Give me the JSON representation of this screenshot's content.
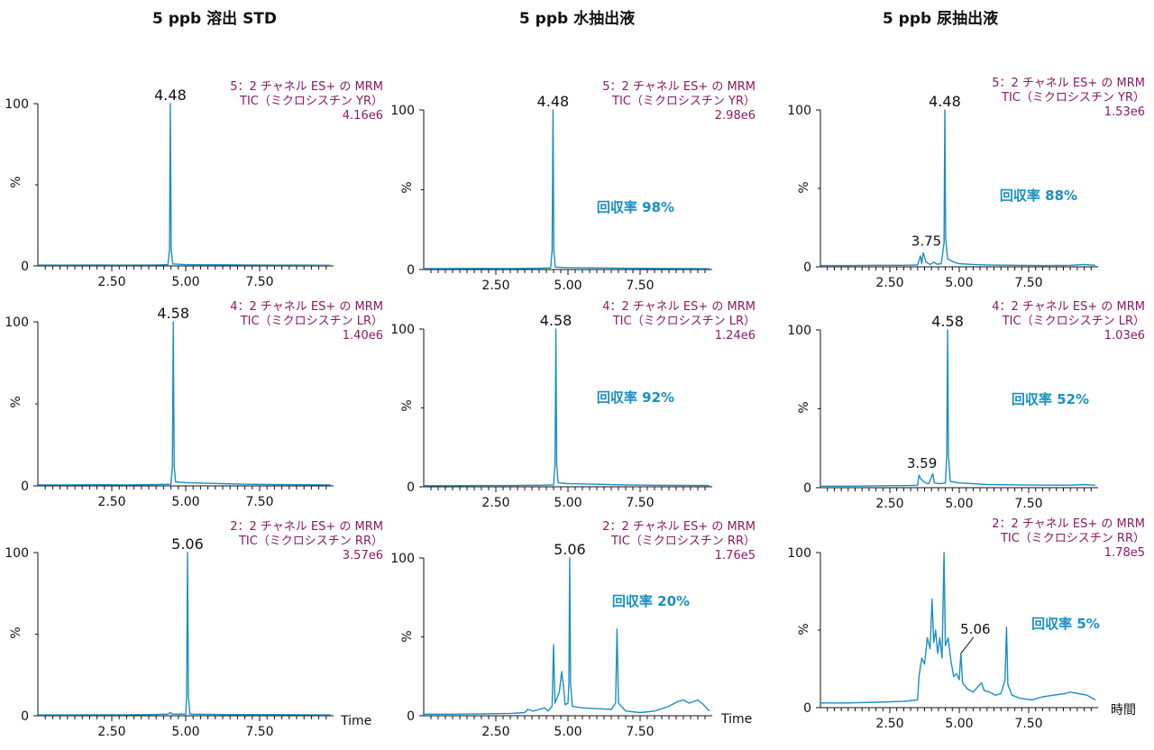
{
  "columns": [
    {
      "title": "5 ppb 溶出 STD"
    },
    {
      "title": "5 ppb 水抽出液"
    },
    {
      "title": "5 ppb 尿抽出液"
    }
  ],
  "colors": {
    "trace": "#1a8fc2",
    "channel_text": "#8a1a63",
    "recovery_text": "#1a8fc2",
    "axis": "#111111"
  },
  "chart_data": [
    {
      "id": "p00",
      "type": "line",
      "xticks": [
        "2.50",
        "5.00",
        "7.50"
      ],
      "xlim": [
        0,
        10
      ],
      "ylim": [
        0,
        100
      ],
      "yticks": [
        "0",
        "100"
      ],
      "ylabel": "%",
      "xlabel": "",
      "channel": [
        "5：2 チャネル ES+ の MRM",
        "TIC（ミクロシスチン YR）",
        "4.16e6"
      ],
      "peaks": [
        {
          "x": 4.48,
          "label": "4.48"
        }
      ],
      "recovery": "",
      "trace": [
        [
          0,
          0.5
        ],
        [
          1,
          0.5
        ],
        [
          2,
          0.6
        ],
        [
          3,
          0.5
        ],
        [
          4,
          0.6
        ],
        [
          4.4,
          0.8
        ],
        [
          4.45,
          10
        ],
        [
          4.48,
          100
        ],
        [
          4.51,
          10
        ],
        [
          4.56,
          1.2
        ],
        [
          5,
          0.8
        ],
        [
          6,
          0.7
        ],
        [
          7,
          0.6
        ],
        [
          8,
          0.5
        ],
        [
          9,
          0.5
        ],
        [
          9.9,
          0.4
        ]
      ]
    },
    {
      "id": "p01",
      "type": "line",
      "xticks": [
        "2.50",
        "5.00",
        "7.50"
      ],
      "xlim": [
        0,
        10
      ],
      "ylim": [
        0,
        100
      ],
      "yticks": [
        "0",
        "100"
      ],
      "ylabel": "%",
      "xlabel": "",
      "channel": [
        "5：2 チャネル ES+ の MRM",
        "TIC（ミクロシスチン YR）",
        "2.98e6"
      ],
      "peaks": [
        {
          "x": 4.48,
          "label": "4.48"
        }
      ],
      "recovery": "回収率 98%",
      "trace": [
        [
          0,
          0.6
        ],
        [
          1,
          0.6
        ],
        [
          2,
          0.7
        ],
        [
          3,
          0.6
        ],
        [
          4,
          0.8
        ],
        [
          4.4,
          1
        ],
        [
          4.45,
          12
        ],
        [
          4.48,
          100
        ],
        [
          4.51,
          12
        ],
        [
          4.56,
          1.5
        ],
        [
          5,
          1.2
        ],
        [
          6,
          1
        ],
        [
          7,
          0.8
        ],
        [
          8,
          0.7
        ],
        [
          9,
          0.6
        ],
        [
          9.9,
          0.5
        ]
      ]
    },
    {
      "id": "p02",
      "type": "line",
      "xticks": [
        "2.50",
        "5.00",
        "7.50"
      ],
      "xlim": [
        0,
        10
      ],
      "ylim": [
        0,
        100
      ],
      "yticks": [
        "0",
        "100"
      ],
      "ylabel": "%",
      "xlabel": "",
      "channel": [
        "5：2 チャネル ES+ の MRM",
        "TIC（ミクロシスチン YR）",
        "1.53e6"
      ],
      "peaks": [
        {
          "x": 4.48,
          "label": "4.48"
        },
        {
          "x": 3.75,
          "label": "3.75",
          "y": 9
        }
      ],
      "recovery": "回収率 88%",
      "trace": [
        [
          0,
          0.8
        ],
        [
          1,
          0.8
        ],
        [
          2,
          1
        ],
        [
          3,
          1
        ],
        [
          3.5,
          1.2
        ],
        [
          3.6,
          7
        ],
        [
          3.65,
          2
        ],
        [
          3.7,
          9
        ],
        [
          3.75,
          6
        ],
        [
          3.8,
          3
        ],
        [
          3.95,
          1.5
        ],
        [
          4.1,
          3
        ],
        [
          4.2,
          1.6
        ],
        [
          4.35,
          2
        ],
        [
          4.45,
          15
        ],
        [
          4.48,
          100
        ],
        [
          4.51,
          18
        ],
        [
          4.58,
          5
        ],
        [
          4.8,
          3
        ],
        [
          5,
          2
        ],
        [
          5.5,
          1.5
        ],
        [
          6,
          1.2
        ],
        [
          7,
          1
        ],
        [
          8,
          0.8
        ],
        [
          9,
          1
        ],
        [
          9.5,
          1.5
        ],
        [
          9.9,
          1
        ]
      ]
    },
    {
      "id": "p10",
      "type": "line",
      "xticks": [
        "2.50",
        "5.00",
        "7.50"
      ],
      "xlim": [
        0,
        10
      ],
      "ylim": [
        0,
        100
      ],
      "yticks": [
        "0",
        "100"
      ],
      "ylabel": "%",
      "xlabel": "",
      "channel": [
        "4：2 チャネル ES+ の MRM",
        "TIC（ミクロシスチン LR）",
        "1.40e6"
      ],
      "peaks": [
        {
          "x": 4.58,
          "label": "4.58"
        }
      ],
      "recovery": "",
      "trace": [
        [
          0,
          0.6
        ],
        [
          1,
          0.6
        ],
        [
          2,
          0.7
        ],
        [
          3,
          0.6
        ],
        [
          4,
          0.8
        ],
        [
          4.5,
          1
        ],
        [
          4.55,
          12
        ],
        [
          4.58,
          100
        ],
        [
          4.61,
          12
        ],
        [
          4.66,
          2.5
        ],
        [
          5,
          2
        ],
        [
          6,
          1.5
        ],
        [
          7,
          1
        ],
        [
          8,
          0.8
        ],
        [
          9,
          0.7
        ],
        [
          9.9,
          0.6
        ]
      ]
    },
    {
      "id": "p11",
      "type": "line",
      "xticks": [
        "2.50",
        "5.00",
        "7.50"
      ],
      "xlim": [
        0,
        10
      ],
      "ylim": [
        0,
        100
      ],
      "yticks": [
        "0",
        "100"
      ],
      "ylabel": "%",
      "xlabel": "",
      "channel": [
        "4：2 チャネル ES+ の MRM",
        "TIC（ミクロシスチン LR）",
        "1.24e6"
      ],
      "peaks": [
        {
          "x": 4.58,
          "label": "4.58"
        }
      ],
      "recovery": "回収率 92%",
      "trace": [
        [
          0,
          0.7
        ],
        [
          1,
          0.7
        ],
        [
          2,
          0.8
        ],
        [
          3,
          0.8
        ],
        [
          4,
          1
        ],
        [
          4.5,
          1.2
        ],
        [
          4.55,
          14
        ],
        [
          4.58,
          100
        ],
        [
          4.61,
          14
        ],
        [
          4.66,
          2.5
        ],
        [
          5,
          2
        ],
        [
          6,
          1.6
        ],
        [
          7,
          1.2
        ],
        [
          8,
          1
        ],
        [
          9,
          0.9
        ],
        [
          9.9,
          0.8
        ]
      ]
    },
    {
      "id": "p12",
      "type": "line",
      "xticks": [
        "2.50",
        "5.00",
        "7.50"
      ],
      "xlim": [
        0,
        10
      ],
      "ylim": [
        0,
        100
      ],
      "yticks": [
        "0",
        "100"
      ],
      "ylabel": "%",
      "xlabel": "",
      "channel": [
        "4：2 チャネル ES+ の MRM",
        "TIC（ミクロシスチン LR）",
        "1.03e6"
      ],
      "peaks": [
        {
          "x": 4.58,
          "label": "4.58"
        },
        {
          "x": 3.59,
          "label": "3.59",
          "y": 8
        }
      ],
      "recovery": "回収率 52%",
      "trace": [
        [
          0,
          1
        ],
        [
          1,
          1
        ],
        [
          2,
          1.2
        ],
        [
          3,
          1.3
        ],
        [
          3.5,
          1.5
        ],
        [
          3.55,
          8
        ],
        [
          3.6,
          6
        ],
        [
          3.7,
          4
        ],
        [
          3.8,
          3
        ],
        [
          3.9,
          2.5
        ],
        [
          4.05,
          9
        ],
        [
          4.1,
          3
        ],
        [
          4.3,
          2.5
        ],
        [
          4.5,
          3
        ],
        [
          4.55,
          20
        ],
        [
          4.58,
          100
        ],
        [
          4.61,
          20
        ],
        [
          4.68,
          4
        ],
        [
          5,
          3
        ],
        [
          5.5,
          2.5
        ],
        [
          6,
          2
        ],
        [
          7,
          1.8
        ],
        [
          8,
          1.6
        ],
        [
          9,
          1.6
        ],
        [
          9.5,
          2
        ],
        [
          9.9,
          1.5
        ]
      ]
    },
    {
      "id": "p20",
      "type": "line",
      "xticks": [
        "2.50",
        "5.00",
        "7.50"
      ],
      "xlim": [
        0,
        10
      ],
      "ylim": [
        0,
        100
      ],
      "yticks": [
        "0",
        "100"
      ],
      "ylabel": "%",
      "xlabel": "Time",
      "channel": [
        "2：2 チャネル ES+ の MRM",
        "TIC（ミクロシスチン RR）",
        "3.57e6"
      ],
      "peaks": [
        {
          "x": 5.06,
          "label": "5.06"
        }
      ],
      "recovery": "",
      "trace": [
        [
          0,
          0.5
        ],
        [
          1,
          0.5
        ],
        [
          2,
          0.6
        ],
        [
          3,
          0.6
        ],
        [
          4,
          0.8
        ],
        [
          4.4,
          1
        ],
        [
          4.48,
          2
        ],
        [
          4.55,
          1
        ],
        [
          5,
          1
        ],
        [
          5.03,
          12
        ],
        [
          5.06,
          100
        ],
        [
          5.09,
          12
        ],
        [
          5.14,
          1
        ],
        [
          6,
          0.8
        ],
        [
          7,
          0.7
        ],
        [
          8,
          0.7
        ],
        [
          9,
          0.6
        ],
        [
          9.9,
          0.5
        ]
      ]
    },
    {
      "id": "p21",
      "type": "line",
      "xticks": [
        "2.50",
        "5.00",
        "7.50"
      ],
      "xlim": [
        0,
        10
      ],
      "ylim": [
        0,
        100
      ],
      "yticks": [
        "0",
        "100"
      ],
      "ylabel": "%",
      "xlabel": "Time",
      "channel": [
        "2：2 チャネル ES+ の MRM",
        "TIC（ミクロシスチン RR）",
        "1.76e5"
      ],
      "peaks": [
        {
          "x": 5.06,
          "label": "5.06"
        }
      ],
      "recovery": "回収率 20%",
      "trace": [
        [
          0,
          1
        ],
        [
          1,
          1
        ],
        [
          2,
          1.2
        ],
        [
          3,
          1.5
        ],
        [
          3.5,
          2
        ],
        [
          3.6,
          4
        ],
        [
          3.8,
          3
        ],
        [
          4.0,
          4
        ],
        [
          4.2,
          5
        ],
        [
          4.3,
          3
        ],
        [
          4.45,
          6
        ],
        [
          4.5,
          45
        ],
        [
          4.55,
          8
        ],
        [
          4.7,
          15
        ],
        [
          4.78,
          28
        ],
        [
          4.85,
          18
        ],
        [
          4.9,
          7
        ],
        [
          5.0,
          8
        ],
        [
          5.03,
          20
        ],
        [
          5.06,
          100
        ],
        [
          5.09,
          20
        ],
        [
          5.15,
          6
        ],
        [
          5.5,
          5
        ],
        [
          6,
          4.5
        ],
        [
          6.5,
          4
        ],
        [
          6.65,
          8
        ],
        [
          6.7,
          55
        ],
        [
          6.75,
          8
        ],
        [
          7,
          3
        ],
        [
          7.5,
          2
        ],
        [
          8,
          3
        ],
        [
          8.5,
          6
        ],
        [
          8.8,
          9
        ],
        [
          9.0,
          10
        ],
        [
          9.2,
          8
        ],
        [
          9.5,
          10
        ],
        [
          9.7,
          7
        ],
        [
          9.9,
          3
        ]
      ]
    },
    {
      "id": "p22",
      "type": "line",
      "xticks": [
        "2.50",
        "5.00",
        "7.50"
      ],
      "xlim": [
        0,
        10
      ],
      "ylim": [
        0,
        100
      ],
      "yticks": [
        "0",
        "100"
      ],
      "ylabel": "%",
      "xlabel": "",
      "channel": [
        "2：2 チャネル ES+ の MRM",
        "TIC（ミクロシスチン RR）",
        "1.78e5"
      ],
      "peaks": [
        {
          "x": 5.06,
          "label": "5.06",
          "y": 35
        }
      ],
      "recovery": "回収率 5%",
      "trace": [
        [
          0,
          3
        ],
        [
          1,
          3
        ],
        [
          2,
          3.5
        ],
        [
          3,
          4
        ],
        [
          3.5,
          5
        ],
        [
          3.55,
          20
        ],
        [
          3.65,
          32
        ],
        [
          3.75,
          28
        ],
        [
          3.85,
          45
        ],
        [
          3.95,
          38
        ],
        [
          4.02,
          70
        ],
        [
          4.08,
          42
        ],
        [
          4.15,
          50
        ],
        [
          4.22,
          35
        ],
        [
          4.3,
          45
        ],
        [
          4.38,
          32
        ],
        [
          4.45,
          100
        ],
        [
          4.5,
          40
        ],
        [
          4.6,
          45
        ],
        [
          4.7,
          30
        ],
        [
          4.8,
          20
        ],
        [
          4.9,
          22
        ],
        [
          5.0,
          18
        ],
        [
          5.06,
          35
        ],
        [
          5.12,
          16
        ],
        [
          5.3,
          12
        ],
        [
          5.5,
          10
        ],
        [
          5.7,
          14
        ],
        [
          5.8,
          16
        ],
        [
          5.9,
          11
        ],
        [
          6.1,
          10
        ],
        [
          6.3,
          8
        ],
        [
          6.5,
          9
        ],
        [
          6.65,
          18
        ],
        [
          6.7,
          52
        ],
        [
          6.75,
          15
        ],
        [
          6.9,
          8
        ],
        [
          7.2,
          6
        ],
        [
          7.6,
          5
        ],
        [
          8,
          7
        ],
        [
          8.4,
          8
        ],
        [
          8.8,
          9
        ],
        [
          9.0,
          10
        ],
        [
          9.3,
          9
        ],
        [
          9.6,
          8
        ],
        [
          9.9,
          5
        ]
      ]
    }
  ],
  "time_label_alt": "時間"
}
